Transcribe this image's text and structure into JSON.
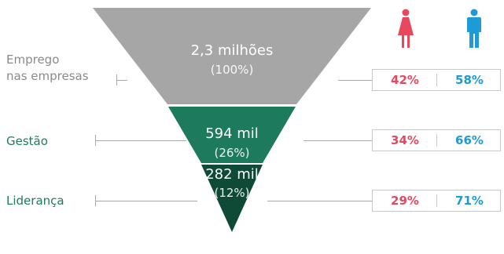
{
  "labels": {
    "emprego_line1": "Emprego",
    "emprego_line2": "nas empresas",
    "gestao": "Gestão",
    "lideranca": "Liderança"
  },
  "tiers": {
    "top": {
      "value": "2,3 milhões",
      "pct": "(100%)",
      "color": "#a6a6a6"
    },
    "middle": {
      "value": "594 mil",
      "pct": "(26%)",
      "color": "#1d7a5c"
    },
    "bottom": {
      "value": "282 mil",
      "pct": "(12%)",
      "color": "#0e4a35"
    }
  },
  "breakdown": {
    "emprego": {
      "female": "42%",
      "male": "58%"
    },
    "gestao": {
      "female": "34%",
      "male": "66%"
    },
    "lideranca": {
      "female": "29%",
      "male": "71%"
    }
  },
  "icons": {
    "female": "female-figure-icon",
    "male": "male-figure-icon"
  },
  "colors": {
    "female": "#e8485e",
    "male": "#1e9ad6",
    "label_gray": "#8a8a8a",
    "label_green": "#1e7b5e"
  }
}
